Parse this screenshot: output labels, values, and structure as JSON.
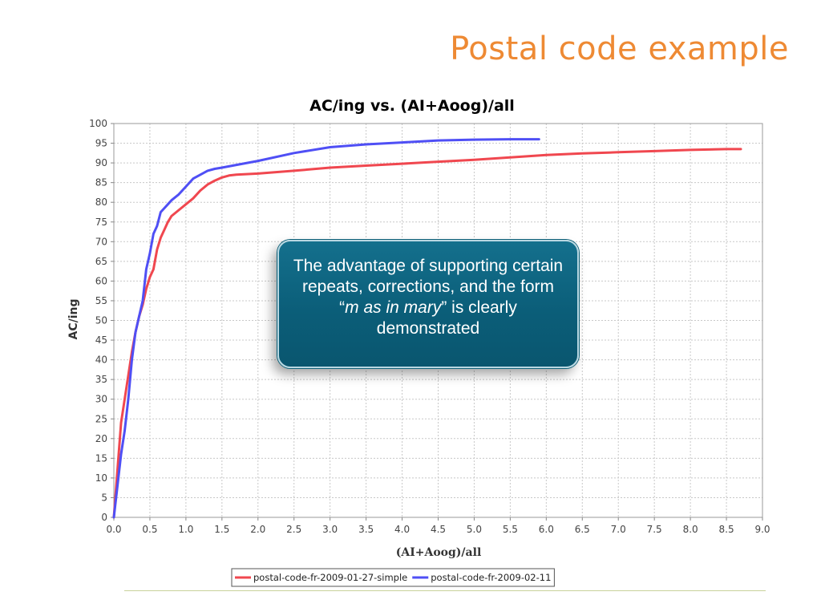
{
  "slide": {
    "title": "Postal code example"
  },
  "callout": {
    "text_before": "The advantage of supporting certain repeats, corrections, and the form “",
    "text_emphasis": "m as in mary",
    "text_after": "” is clearly demonstrated"
  },
  "colors": {
    "title": "#ee8a34",
    "series_red": "#f0474f",
    "series_blue": "#4f4ff5",
    "callout_bg": "#0b5e79"
  },
  "chart_data": {
    "type": "line",
    "title": "AC/ing vs. (AI+Aoog)/all",
    "xlabel": "(AI+Aoog)/all",
    "ylabel": "AC/ing",
    "xlim": [
      0,
      9.0
    ],
    "ylim": [
      0,
      100
    ],
    "xticks": [
      "0.0",
      "0.5",
      "1.0",
      "1.5",
      "2.0",
      "2.5",
      "3.0",
      "3.5",
      "4.0",
      "4.5",
      "5.0",
      "5.5",
      "6.0",
      "6.5",
      "7.0",
      "7.5",
      "8.0",
      "8.5",
      "9.0"
    ],
    "yticks": [
      "0",
      "5",
      "10",
      "15",
      "20",
      "25",
      "30",
      "35",
      "40",
      "45",
      "50",
      "55",
      "60",
      "65",
      "70",
      "75",
      "80",
      "85",
      "90",
      "95",
      "100"
    ],
    "grid": true,
    "legend_position": "bottom-center",
    "series": [
      {
        "name": "postal-code-fr-2009-01-27-simple",
        "color": "#f0474f",
        "x": [
          0.0,
          0.05,
          0.1,
          0.15,
          0.2,
          0.25,
          0.3,
          0.35,
          0.4,
          0.45,
          0.5,
          0.55,
          0.6,
          0.65,
          0.7,
          0.75,
          0.8,
          0.9,
          1.0,
          1.1,
          1.2,
          1.3,
          1.4,
          1.5,
          1.6,
          1.7,
          2.0,
          2.5,
          3.0,
          3.5,
          4.0,
          4.5,
          5.0,
          5.5,
          6.0,
          6.5,
          7.0,
          7.5,
          8.0,
          8.5,
          8.7
        ],
        "y": [
          0,
          12,
          24,
          30,
          36,
          42,
          47,
          51,
          54,
          58,
          61,
          63,
          68,
          71,
          73,
          75,
          76.5,
          78,
          79.5,
          81,
          83,
          84.5,
          85.5,
          86.3,
          86.8,
          87,
          87.3,
          88,
          88.8,
          89.3,
          89.8,
          90.3,
          90.8,
          91.4,
          92,
          92.4,
          92.7,
          93,
          93.3,
          93.5,
          93.5
        ]
      },
      {
        "name": "postal-code-fr-2009-02-11",
        "color": "#4f4ff5",
        "x": [
          0.0,
          0.05,
          0.1,
          0.15,
          0.2,
          0.25,
          0.3,
          0.35,
          0.4,
          0.45,
          0.5,
          0.55,
          0.6,
          0.65,
          0.7,
          0.75,
          0.8,
          0.9,
          1.0,
          1.1,
          1.2,
          1.3,
          1.4,
          1.5,
          1.7,
          2.0,
          2.5,
          3.0,
          3.5,
          4.0,
          4.5,
          5.0,
          5.5,
          5.9
        ],
        "y": [
          0,
          8,
          16,
          22,
          30,
          40,
          47,
          51,
          55,
          63,
          67,
          72,
          74,
          77.5,
          78.5,
          79.5,
          80.5,
          82,
          84,
          86,
          87,
          88,
          88.5,
          88.8,
          89.5,
          90.5,
          92.5,
          94,
          94.7,
          95.2,
          95.7,
          95.9,
          96,
          96
        ]
      }
    ]
  }
}
